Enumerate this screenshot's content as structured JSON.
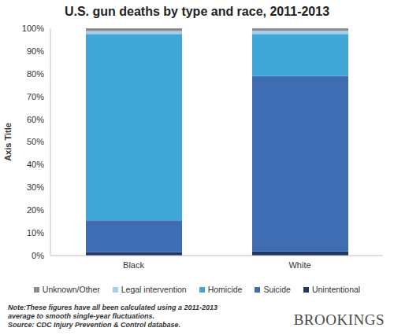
{
  "chart_data": {
    "type": "bar",
    "title": "U.S. gun deaths by type and race, 2011-2013",
    "y_label": "Axis Title",
    "categories": [
      "Black",
      "White"
    ],
    "stacked": true,
    "grid": false,
    "legend": "bottom",
    "ylim": [
      0,
      100
    ],
    "yticks": [
      {
        "value": 0,
        "label": "0%"
      },
      {
        "value": 10,
        "label": "10%"
      },
      {
        "value": 20,
        "label": "20%"
      },
      {
        "value": 30,
        "label": "30%"
      },
      {
        "value": 40,
        "label": "40%"
      },
      {
        "value": 50,
        "label": "50%"
      },
      {
        "value": 60,
        "label": "60%"
      },
      {
        "value": 70,
        "label": "70%"
      },
      {
        "value": 80,
        "label": "80%"
      },
      {
        "value": 90,
        "label": "90%"
      },
      {
        "value": 100,
        "label": "100%"
      }
    ],
    "series": [
      {
        "name": "Unintentional",
        "color": "#1f3864",
        "values": [
          1.5,
          1.8
        ]
      },
      {
        "name": "Suicide",
        "color": "#3f6db3",
        "values": [
          14,
          77.2
        ]
      },
      {
        "name": "Homicide",
        "color": "#3fa6d6",
        "values": [
          82,
          18.5
        ]
      },
      {
        "name": "Legal intervention",
        "color": "#a9cde9",
        "values": [
          1.3,
          1.5
        ]
      },
      {
        "name": "Unknown/Other",
        "color": "#8c8c8c",
        "values": [
          1.2,
          1.0
        ]
      }
    ],
    "note": "Note:These figures have all been calculated using a 2011-2013 average to smooth single-year fluctuations.",
    "source": "Source: CDC Injury Prevention & Control database.",
    "credit": "BROOKINGS"
  }
}
